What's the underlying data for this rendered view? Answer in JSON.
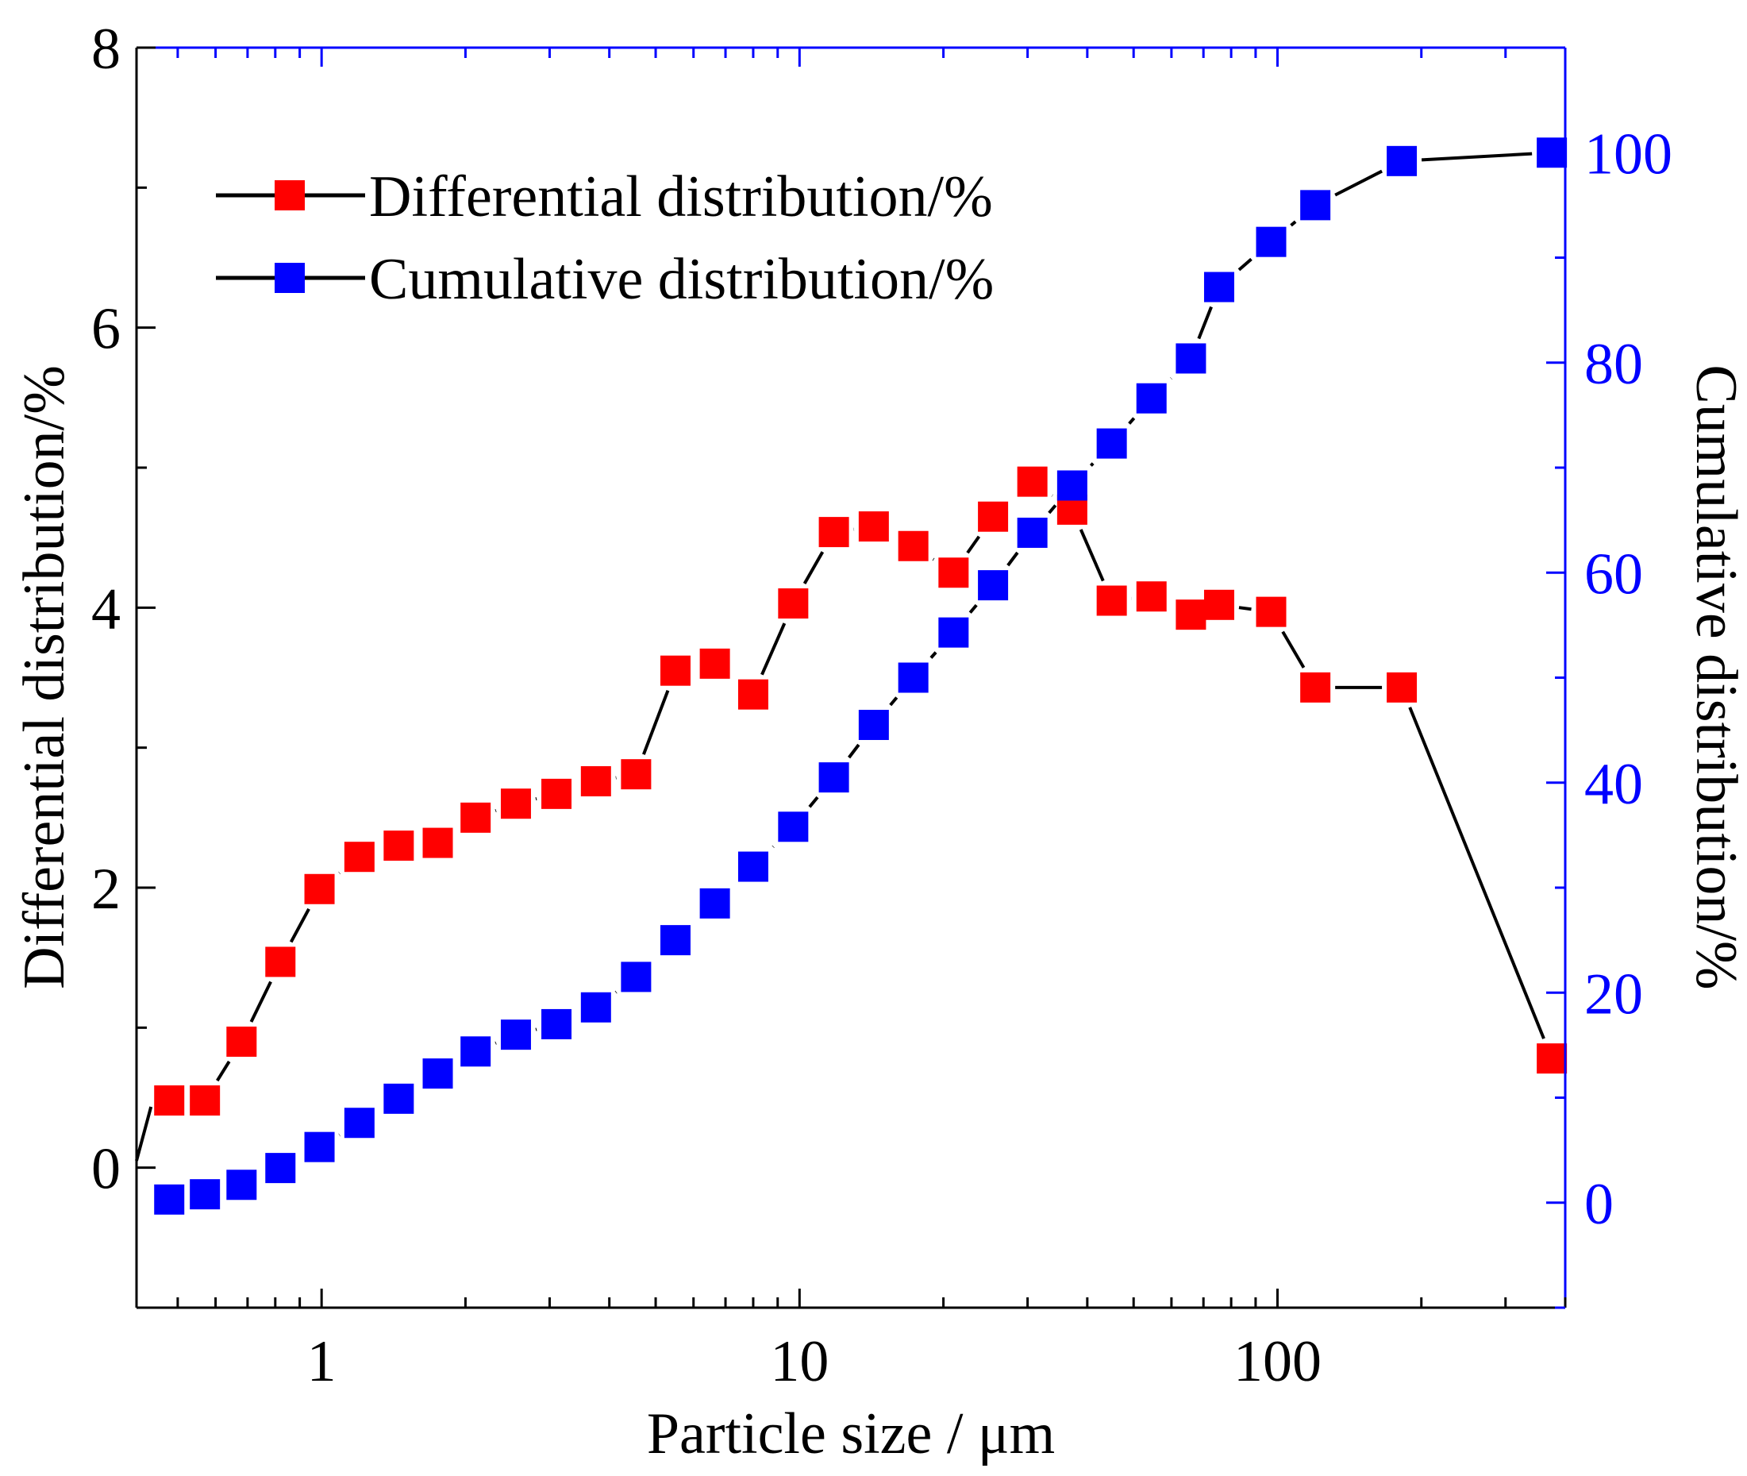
{
  "chart_data": {
    "type": "line",
    "title": "",
    "xlabel": "Particle size / μm",
    "ylabel_left": "Differential distribution/%",
    "ylabel_right": "Cumulative distribution/%",
    "x_scale": "log",
    "xlim": [
      0.41,
      400
    ],
    "ylim_left": [
      -1,
      8
    ],
    "ylim_right": [
      -10,
      110
    ],
    "x_ticks": [
      1,
      10,
      100
    ],
    "x_tick_labels": [
      "1",
      "10",
      "100"
    ],
    "y_left_ticks": [
      0,
      2,
      4,
      6,
      8
    ],
    "y_left_tick_labels": [
      "0",
      "2",
      "4",
      "6",
      "8"
    ],
    "y_right_ticks": [
      0,
      20,
      40,
      60,
      80,
      100
    ],
    "y_right_tick_labels": [
      "0",
      "20",
      "40",
      "60",
      "80",
      "100"
    ],
    "legend_position": "top-left",
    "grid": false,
    "series": [
      {
        "name": "Differential distribution/%",
        "axis": "left",
        "marker_color": "#ff0000",
        "line_color": "#000000",
        "x": [
          0.48,
          0.57,
          0.68,
          0.82,
          0.99,
          1.2,
          1.45,
          1.75,
          2.1,
          2.55,
          3.1,
          3.75,
          4.55,
          5.5,
          6.65,
          8.0,
          9.7,
          11.8,
          14.3,
          17.3,
          21.0,
          25.4,
          30.7,
          37.2,
          45.0,
          54.5,
          65.9,
          75.5,
          97.0,
          120.0,
          182.0,
          375.0
        ],
        "values": [
          0.48,
          0.48,
          0.9,
          1.47,
          1.99,
          2.22,
          2.3,
          2.32,
          2.5,
          2.6,
          2.67,
          2.76,
          2.81,
          3.55,
          3.6,
          3.38,
          4.03,
          4.54,
          4.58,
          4.44,
          4.25,
          4.65,
          4.9,
          4.7,
          4.05,
          4.08,
          3.95,
          4.02,
          3.97,
          3.43,
          3.43,
          0.78
        ]
      },
      {
        "name": "Cumulative distribution/%",
        "axis": "right",
        "marker_color": "#0000ff",
        "line_color": "#000000",
        "x": [
          0.48,
          0.57,
          0.68,
          0.82,
          0.99,
          1.2,
          1.45,
          1.75,
          2.1,
          2.55,
          3.1,
          3.75,
          4.55,
          5.5,
          6.65,
          8.0,
          9.7,
          11.8,
          14.3,
          17.3,
          21.0,
          25.4,
          30.7,
          37.2,
          45.0,
          54.5,
          65.9,
          75.5,
          97.0,
          120.0,
          182.0,
          375.0
        ],
        "values": [
          0.3,
          0.8,
          1.7,
          3.3,
          5.3,
          7.6,
          9.9,
          12.3,
          14.4,
          16.0,
          17.0,
          18.6,
          21.5,
          25.0,
          28.5,
          32.0,
          35.8,
          40.5,
          45.5,
          50.0,
          54.3,
          58.8,
          63.8,
          68.3,
          72.3,
          76.6,
          80.4,
          87.2,
          91.5,
          95.0,
          99.2,
          100.0
        ]
      }
    ]
  }
}
